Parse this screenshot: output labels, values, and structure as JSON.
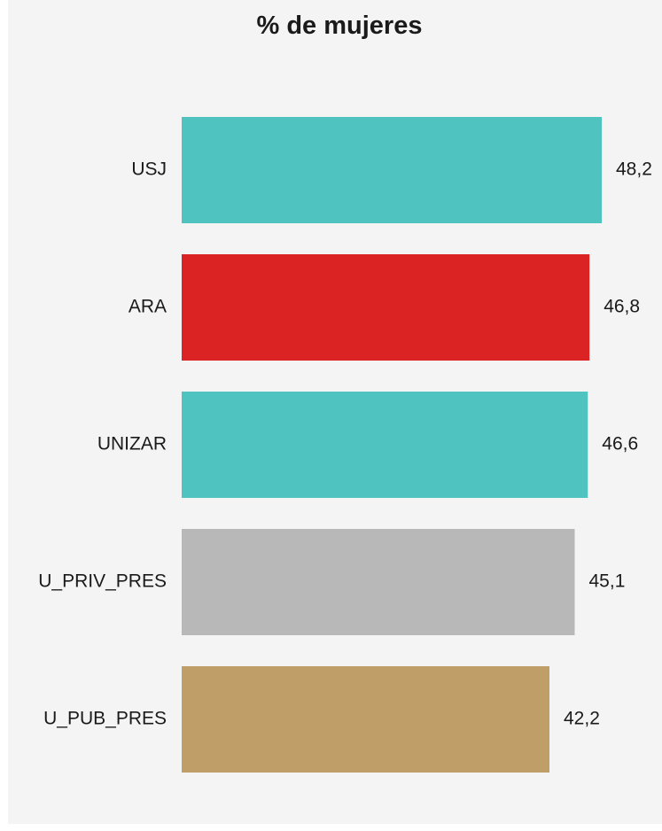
{
  "chart_data": {
    "type": "bar",
    "orientation": "horizontal",
    "title": "% de mujeres",
    "xlabel": "",
    "ylabel": "",
    "grid": false,
    "legend": "none",
    "categories": [
      "USJ",
      "ARA",
      "UNIZAR",
      "U_PRIV_PRES",
      "U_PUB_PRES"
    ],
    "values": [
      48.2,
      46.8,
      46.6,
      45.1,
      42.2
    ],
    "value_labels": [
      "48,2",
      "46,8",
      "46,6",
      "45,1",
      "42,2"
    ],
    "colors": [
      "#4fc3bf",
      "#dc2324",
      "#4fc3bf",
      "#b8b8b8",
      "#bf9e67"
    ],
    "xlim": [
      0,
      48.2
    ]
  }
}
